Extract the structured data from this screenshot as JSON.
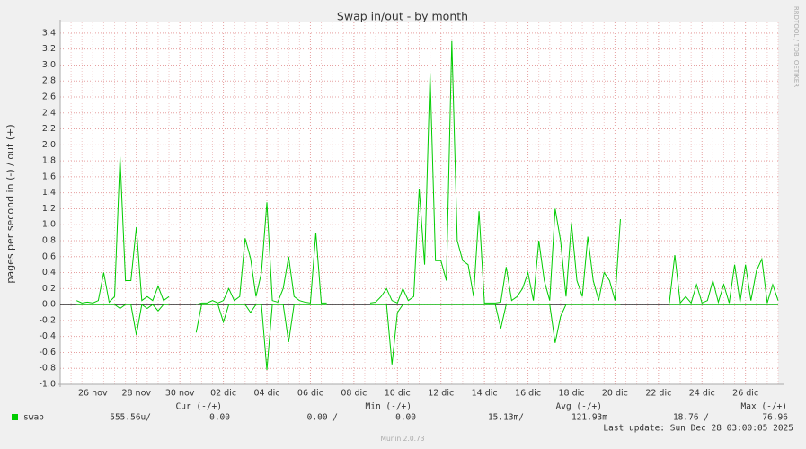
{
  "chart_data": {
    "type": "line",
    "title": "Swap in/out - by month",
    "y_label": "pages per second in (-) / out (+)",
    "side_note": "RRDTOOL / TOBI OETIKER",
    "footer": "Munin 2.0.73",
    "last_update": "Last update: Sun Dec 28 03:00:05 2025",
    "legend_headers": [
      "Cur (-/+)",
      "Min (-/+)",
      "Avg (-/+)",
      "Max (-/+)"
    ],
    "legend_values": [
      "555.56u/",
      "0.00",
      "0.00 /",
      "0.00",
      "15.13m/",
      "121.93m",
      "18.76 /",
      "76.96"
    ],
    "grid": true,
    "ylim": [
      -1.0,
      3.5
    ],
    "yticks": [
      {
        "value": -1,
        "label": "-1.0"
      },
      -0.8,
      -0.6,
      -0.4,
      -0.2,
      {
        "value": 0,
        "label": "0.0"
      },
      0.2,
      0.4,
      0.6,
      0.8,
      {
        "value": 1,
        "label": "1.0"
      },
      1.2,
      1.4,
      1.6,
      1.8,
      {
        "value": 2,
        "label": "2.0"
      },
      2.2,
      2.4,
      2.6,
      2.8,
      {
        "value": 3,
        "label": "3.0"
      },
      3.2,
      3.4
    ],
    "categories": [
      null,
      null,
      null,
      null,
      null,
      null,
      "26 nov",
      null,
      null,
      null,
      null,
      null,
      null,
      null,
      "28 nov",
      null,
      null,
      null,
      null,
      null,
      null,
      null,
      "30 nov",
      null,
      null,
      null,
      null,
      null,
      null,
      null,
      "02 dic",
      null,
      null,
      null,
      null,
      null,
      null,
      null,
      "04 dic",
      null,
      null,
      null,
      null,
      null,
      null,
      null,
      "06 dic",
      null,
      null,
      null,
      null,
      null,
      null,
      null,
      "08 dic",
      null,
      null,
      null,
      null,
      null,
      null,
      null,
      "10 dic",
      null,
      null,
      null,
      null,
      null,
      null,
      null,
      "12 dic",
      null,
      null,
      null,
      null,
      null,
      null,
      null,
      "14 dic",
      null,
      null,
      null,
      null,
      null,
      null,
      null,
      "16 dic",
      null,
      null,
      null,
      null,
      null,
      null,
      null,
      "18 dic",
      null,
      null,
      null,
      null,
      null,
      null,
      null,
      "20 dic",
      null,
      null,
      null,
      null,
      null,
      null,
      null,
      "22 dic",
      null,
      null,
      null,
      null,
      null,
      null,
      null,
      "24 dic",
      null,
      null,
      null,
      null,
      null,
      null,
      null,
      "26 dic",
      null,
      null,
      null,
      null,
      null,
      null
    ],
    "series": [
      {
        "name": "swap",
        "color": "#00cc00",
        "values": [
          null,
          null,
          null,
          0.05,
          0.02,
          0.03,
          0.02,
          0.05,
          0.4,
          0.03,
          0.1,
          1.85,
          0.3,
          0.3,
          0.97,
          0.05,
          0.1,
          0.05,
          0.23,
          0.05,
          0.1,
          null,
          null,
          null,
          null,
          0,
          0.02,
          0.02,
          0.05,
          0.02,
          0.05,
          0.2,
          0.05,
          0.1,
          0.83,
          0.58,
          0.1,
          0.4,
          1.28,
          0.05,
          0.03,
          0.2,
          0.6,
          0.1,
          0.05,
          0.03,
          0.02,
          0.9,
          0.02,
          0.02,
          null,
          null,
          null,
          null,
          null,
          null,
          null,
          0.02,
          0.03,
          0.1,
          0.2,
          0.05,
          0.02,
          0.2,
          0.05,
          0.1,
          1.45,
          0.5,
          2.9,
          0.55,
          0.55,
          0.3,
          3.3,
          0.8,
          0.55,
          0.5,
          0.1,
          1.17,
          0.02,
          0.02,
          0.02,
          0.03,
          0.47,
          0.05,
          0.1,
          0.2,
          0.4,
          0.05,
          0.8,
          0.3,
          0.05,
          1.2,
          0.8,
          0.1,
          1.02,
          0.3,
          0.1,
          0.85,
          0.3,
          0.05,
          0.4,
          0.3,
          0.05,
          1.07,
          null,
          null,
          null,
          null,
          null,
          null,
          null,
          null,
          0.02,
          0.62,
          0.02,
          0.1,
          0.02,
          0.25,
          0.02,
          0.05,
          0.3,
          0.03,
          0.25,
          0.02,
          0.5,
          0.03,
          0.5,
          0.05,
          0.42,
          0.57,
          0.02,
          0.25,
          0.05
        ]
      },
      {
        "color": "#00cc00",
        "values": [
          null,
          null,
          null,
          0,
          0,
          0,
          0,
          0,
          0,
          0,
          0,
          -0.05,
          0,
          0,
          -0.38,
          0,
          -0.05,
          0,
          -0.08,
          0,
          0,
          null,
          null,
          null,
          null,
          -0.35,
          0,
          0,
          0,
          0,
          -0.22,
          0,
          0,
          0,
          0,
          -0.1,
          0,
          0,
          -0.82,
          0,
          0,
          0,
          -0.47,
          0,
          0,
          0,
          0,
          0,
          0,
          0,
          null,
          null,
          null,
          null,
          null,
          null,
          null,
          0,
          0,
          0,
          0,
          -0.75,
          -0.1,
          0,
          0,
          0,
          0,
          0,
          0,
          0,
          0,
          0,
          0,
          0,
          0,
          0,
          0,
          0,
          0,
          0,
          0,
          -0.3,
          0,
          0,
          0,
          0,
          0,
          0,
          0,
          0,
          0,
          -0.48,
          -0.15,
          0,
          0,
          0,
          0,
          0,
          0,
          0,
          0,
          0,
          0,
          0,
          null,
          null,
          null,
          null,
          null,
          null,
          null,
          null,
          0,
          0,
          0,
          0,
          0,
          0,
          0,
          0,
          0,
          0,
          0,
          0,
          0,
          0,
          0,
          0,
          0,
          0,
          0,
          0,
          0
        ]
      }
    ]
  }
}
